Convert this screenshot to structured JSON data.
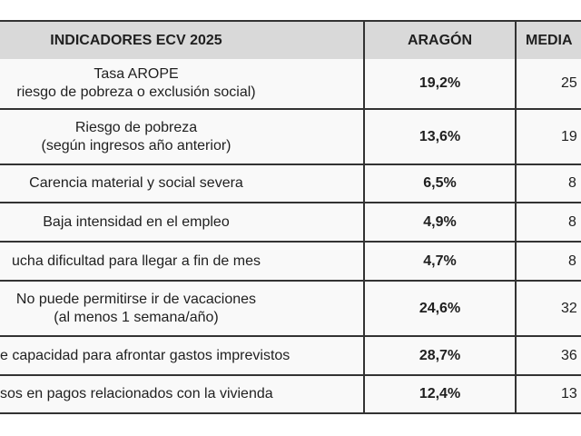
{
  "header": {
    "indicator": "INDICADORES ECV 2025",
    "aragon": "ARAGÓN",
    "media": "MEDIA"
  },
  "rows": [
    {
      "lines": [
        "Tasa AROPE",
        "riesgo de pobreza o exclusión social)"
      ],
      "aragon": "19,2%",
      "media": "25"
    },
    {
      "lines": [
        "Riesgo de pobreza",
        "(según ingresos año anterior)"
      ],
      "aragon": "13,6%",
      "media": "19"
    },
    {
      "lines": [
        "Carencia material y social severa"
      ],
      "aragon": "6,5%",
      "media": "8"
    },
    {
      "lines": [
        "Baja intensidad en el empleo"
      ],
      "aragon": "4,9%",
      "media": "8"
    },
    {
      "lines": [
        "ucha dificultad para llegar a fin de mes"
      ],
      "aragon": "4,7%",
      "media": "8"
    },
    {
      "lines": [
        "No puede permitirse ir de vacaciones",
        "(al menos 1 semana/año)"
      ],
      "aragon": "24,6%",
      "media": "32"
    },
    {
      "lines": [
        "e capacidad para afrontar gastos imprevistos"
      ],
      "aragon": "28,7%",
      "media": "36"
    },
    {
      "lines": [
        "sos en pagos relacionados con la vivienda"
      ],
      "aragon": "12,4%",
      "media": "13"
    }
  ],
  "colors": {
    "header_bg": "#d9d9d9",
    "border": "#333333"
  }
}
